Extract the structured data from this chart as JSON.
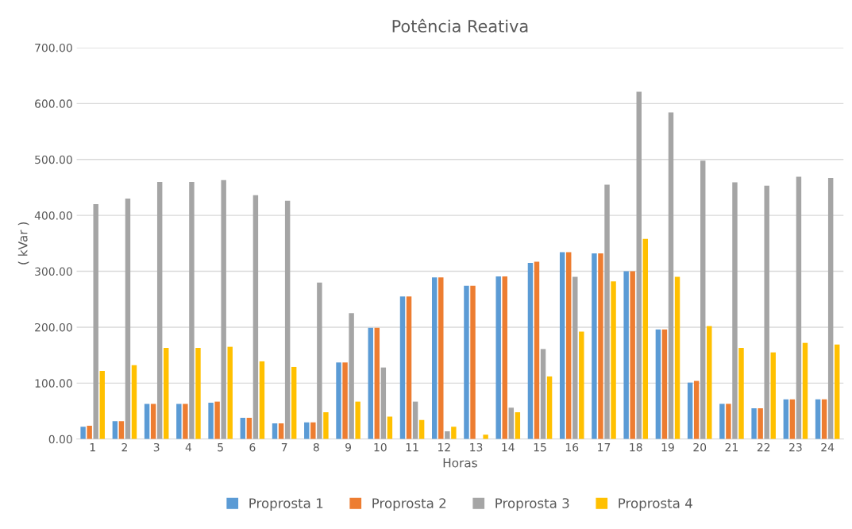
{
  "chart_data": {
    "type": "bar",
    "title": "Potência Reativa",
    "xlabel": "Horas",
    "ylabel": "( kVar )",
    "categories": [
      "1",
      "2",
      "3",
      "4",
      "5",
      "6",
      "7",
      "8",
      "9",
      "10",
      "11",
      "12",
      "13",
      "14",
      "15",
      "16",
      "17",
      "18",
      "19",
      "20",
      "21",
      "22",
      "23",
      "24"
    ],
    "series": [
      {
        "name": "Proprosta 1",
        "color": "#5b9bd5",
        "values": [
          22,
          32,
          63,
          63,
          65,
          38,
          28,
          30,
          137,
          199,
          255,
          289,
          274,
          291,
          315,
          334,
          332,
          300,
          196,
          101,
          63,
          55,
          71,
          71
        ]
      },
      {
        "name": "Proprosta 2",
        "color": "#ed7d31",
        "values": [
          24,
          32,
          63,
          63,
          67,
          38,
          28,
          30,
          137,
          199,
          255,
          289,
          274,
          291,
          317,
          334,
          332,
          300,
          196,
          104,
          63,
          55,
          71,
          71
        ]
      },
      {
        "name": "Proprosta 3",
        "color": "#a5a5a5",
        "values": [
          420,
          430,
          460,
          460,
          463,
          436,
          426,
          280,
          225,
          128,
          67,
          14,
          0,
          56,
          161,
          290,
          455,
          621,
          584,
          498,
          459,
          453,
          469,
          467
        ]
      },
      {
        "name": "Proprosta 4",
        "color": "#ffc000",
        "values": [
          122,
          132,
          163,
          163,
          165,
          139,
          129,
          48,
          67,
          40,
          34,
          22,
          8,
          48,
          112,
          192,
          282,
          358,
          290,
          202,
          163,
          155,
          172,
          169
        ]
      }
    ],
    "ylim": [
      0,
      700
    ],
    "yticks": [
      {
        "value": 0,
        "label": "0.00"
      },
      {
        "value": 100,
        "label": "100.00"
      },
      {
        "value": 200,
        "label": "200.00"
      },
      {
        "value": 300,
        "label": "300.00"
      },
      {
        "value": 400,
        "label": "400.00"
      },
      {
        "value": 500,
        "label": "500.00"
      },
      {
        "value": 600,
        "label": "600.00"
      },
      {
        "value": 700,
        "label": "700.00"
      }
    ],
    "grid": "y",
    "legend": "bottom"
  }
}
